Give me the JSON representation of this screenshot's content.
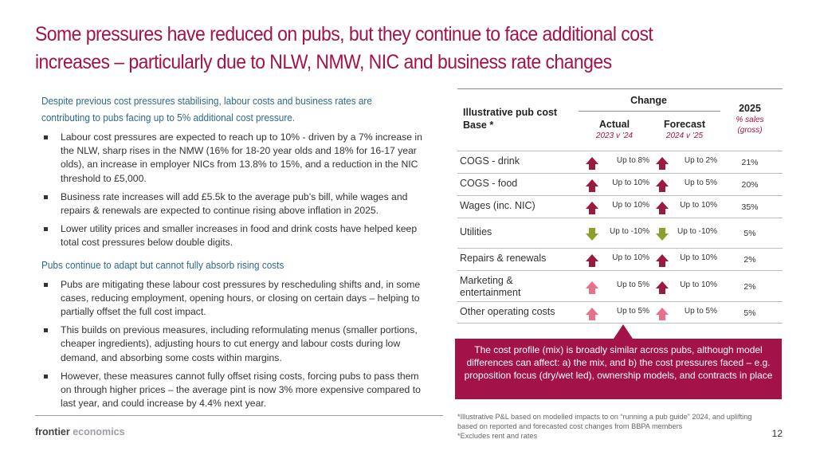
{
  "title": {
    "line1": "Some pressures have reduced on pubs, but they continue to face additional cost",
    "line2": "increases – particularly due to NLW, NMW, NIC and business rate changes"
  },
  "left": {
    "section1_heading_line1": "Despite previous cost pressures stabilising, labour costs and business rates are",
    "section1_heading_line2": "contributing to pubs facing up to 5% additional cost pressure.",
    "section1_bullets": [
      "Labour cost pressures are expected to reach up to 10% - driven by a 7% increase in the NLW, sharp rises in the NMW (16% for 18-20 year olds and 18% for 16-17 year olds), an increase in employer NICs from 13.8% to 15%, and a reduction in the NIC threshold to £5,000.",
      "Business rate increases will add £5.5k to the average pub’s bill, while wages and repairs & renewals are expected to continue rising above inflation in 2025.",
      "Lower utility prices and smaller increases in food and drink costs have helped keep total cost pressures below double digits."
    ],
    "section2_heading": "Pubs continue to adapt but cannot fully absorb rising costs",
    "section2_bullets": [
      "Pubs are mitigating these labour cost pressures by rescheduling shifts and, in some cases, reducing employment, opening hours, or closing on certain days – helping to partially offset the full cost impact.",
      "This builds on previous measures, including reformulating menus (smaller portions, cheaper ingredients), adjusting hours to cut energy and labour costs during low demand, and absorbing some costs within margins.",
      "However, these measures cannot fully offset rising costs, forcing pubs to pass them on through higher prices – the average pint is now 3% more expensive compared to last year, and could increase by 4.4% next year."
    ]
  },
  "table": {
    "header_base_line1": "Illustrative pub cost",
    "header_base_line2": "Base *",
    "header_change": "Change",
    "header_actual": "Actual",
    "header_actual_sub": "2023 v ’24",
    "header_forecast": "Forecast",
    "header_forecast_sub": "2024 v ’25",
    "header_2025": "2025",
    "header_2025_sub_line1": "% sales",
    "header_2025_sub_line2": "(gross)",
    "rows": [
      {
        "label_line1": "COGS - drink",
        "label_line2": "",
        "actual": "Up to 8%",
        "actual_dir": "up-dark",
        "forecast": "Up to 2%",
        "forecast_dir": "up-dark",
        "share": "21%"
      },
      {
        "label_line1": "COGS - food",
        "label_line2": "",
        "actual": "Up to 10%",
        "actual_dir": "up-dark",
        "forecast": "Up to 5%",
        "forecast_dir": "up-dark",
        "share": "20%"
      },
      {
        "label_line1": "Wages (inc. NIC)",
        "label_line2": "",
        "actual": "Up to 10%",
        "actual_dir": "up-dark",
        "forecast": "Up to 10%",
        "forecast_dir": "up-dark",
        "share": "35%"
      },
      {
        "label_line1": "Utilities",
        "label_line2": "",
        "actual": "Up to -10%",
        "actual_dir": "down-green",
        "forecast": "Up to -10%",
        "forecast_dir": "down-green",
        "share": "5%"
      },
      {
        "label_line1": "Repairs & renewals",
        "label_line2": "",
        "actual": "Up to 10%",
        "actual_dir": "up-dark",
        "forecast": "Up to 10%",
        "forecast_dir": "up-dark",
        "share": "2%"
      },
      {
        "label_line1": "Marketing &",
        "label_line2": "entertainment",
        "actual": "Up to 5%",
        "actual_dir": "up-light",
        "forecast": "Up to 10%",
        "forecast_dir": "up-dark",
        "share": "2%"
      },
      {
        "label_line1": "Other operating costs",
        "label_line2": "",
        "actual": "Up to 5%",
        "actual_dir": "up-light",
        "forecast": "Up to 5%",
        "forecast_dir": "up-light",
        "share": "5%"
      }
    ]
  },
  "callout": {
    "text": "The cost profile (mix) is broadly similar across pubs, although model differences can affect: a) the mix, and b) the cost pressures faced – e.g. proposition focus (dry/wet led), ownership models, and contracts in place"
  },
  "footnote": {
    "line1": "*Illustrative P&L based on modelled impacts to on “running a pub guide” 2024, and uplifting",
    "line2": "based on reported and forecasted cost changes from BBPA members",
    "line3": "*Excludes rent and rates"
  },
  "footer": {
    "brand_part1": "frontier",
    "brand_part2": "economics",
    "page_number": "12"
  },
  "colors": {
    "accent": "#a3134a",
    "heading_blue": "#2c6a8a",
    "arrow_up_dark": "#9b1b3f",
    "arrow_up_light": "#e8708a",
    "arrow_down_green": "#8aa12b"
  }
}
